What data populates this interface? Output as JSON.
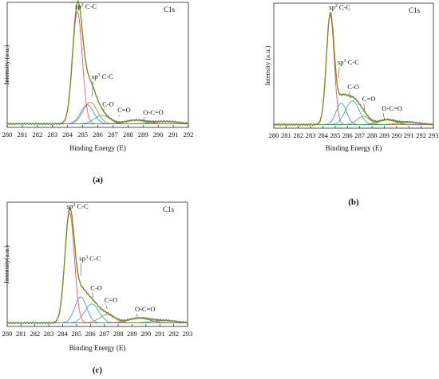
{
  "chart_data": [
    {
      "id": "a",
      "type": "line",
      "panel_label": "(a)",
      "title": "C1s",
      "xlabel": "Binding Energy (E)",
      "ylabel": "Intensity (a.u.)",
      "xlim": [
        280,
        292
      ],
      "ylim": [
        0,
        1.05
      ],
      "x_ticks": [
        280,
        281,
        282,
        283,
        284,
        285,
        286,
        287,
        288,
        289,
        290,
        291,
        292
      ],
      "y_ticks_shown": false,
      "grid": false,
      "baseline": 0.03,
      "annotations": [
        {
          "text": "sp",
          "sup": "2",
          "rest": " C-C",
          "at_x": 284.65,
          "at_y": 0.97,
          "tx": 284.5,
          "ty": 0.99
        },
        {
          "text": "sp",
          "sup": "3",
          "rest": " C-C",
          "at_x": 285.6,
          "at_y": 0.26,
          "tx": 285.6,
          "ty": 0.4
        },
        {
          "text": "C-O",
          "sup": "",
          "rest": "",
          "at_x": 286.4,
          "at_y": 0.14,
          "tx": 286.3,
          "ty": 0.17
        },
        {
          "text": "C=O",
          "sup": "",
          "rest": "",
          "at_x": 287.4,
          "at_y": 0.09,
          "tx": 287.3,
          "ty": 0.12
        },
        {
          "text": "O-C=O",
          "sup": "",
          "rest": "",
          "at_x": 289.0,
          "at_y": 0.06,
          "tx": 289.0,
          "ty": 0.1
        }
      ],
      "series": [
        {
          "name": "sp2 C-C",
          "color": "#e06060",
          "center": 284.65,
          "height": 0.94,
          "fwhm": 0.75
        },
        {
          "name": "sp3 C-C",
          "color": "#b08a4a",
          "center": 285.5,
          "height": 0.18,
          "fwhm": 1.1
        },
        {
          "name": "C-O",
          "color": "#4a90d9",
          "center": 285.3,
          "height": 0.16,
          "fwhm": 1.0
        },
        {
          "name": "C=O",
          "color": "#40b0a8",
          "center": 286.3,
          "height": 0.07,
          "fwhm": 1.2
        },
        {
          "name": "O-C=O",
          "color": "#8a5ac0",
          "center": 288.5,
          "height": 0.03,
          "fwhm": 1.6
        },
        {
          "name": "pi-pi*",
          "color": "#3aa05a",
          "center": 290.5,
          "height": 0.02,
          "fwhm": 2.0
        }
      ]
    },
    {
      "id": "b",
      "type": "line",
      "panel_label": "(b)",
      "title": "C1s",
      "xlabel": "Binding Energy (E)",
      "ylabel": "Intensity (a.u.)",
      "xlim": [
        280,
        293
      ],
      "ylim": [
        0,
        1.05
      ],
      "x_ticks": [
        280,
        281,
        282,
        283,
        284,
        285,
        286,
        287,
        288,
        289,
        290,
        291,
        292,
        293
      ],
      "y_ticks_shown": false,
      "grid": false,
      "baseline": 0.03,
      "annotations": [
        {
          "text": "sp",
          "sup": "2",
          "rest": " C-C",
          "at_x": 284.6,
          "at_y": 0.97,
          "tx": 284.5,
          "ty": 0.99
        },
        {
          "text": "sp",
          "sup": "3",
          "rest": " C-C",
          "at_x": 285.3,
          "at_y": 0.42,
          "tx": 285.2,
          "ty": 0.53
        },
        {
          "text": "C-O",
          "sup": "",
          "rest": "",
          "at_x": 286.3,
          "at_y": 0.25,
          "tx": 286.0,
          "ty": 0.32
        },
        {
          "text": "C=O",
          "sup": "",
          "rest": "",
          "at_x": 287.4,
          "at_y": 0.15,
          "tx": 287.2,
          "ty": 0.22
        },
        {
          "text": "O-C=O",
          "sup": "",
          "rest": "",
          "at_x": 289.0,
          "at_y": 0.07,
          "tx": 288.8,
          "ty": 0.14
        }
      ],
      "series": [
        {
          "name": "sp2 C-C",
          "color": "#e06060",
          "center": 284.6,
          "height": 0.92,
          "fwhm": 0.75
        },
        {
          "name": "sp3 C-C",
          "color": "#4a90d9",
          "center": 285.5,
          "height": 0.18,
          "fwhm": 1.0
        },
        {
          "name": "C-O",
          "color": "#40b0a8",
          "center": 286.4,
          "height": 0.2,
          "fwhm": 1.3
        },
        {
          "name": "C=O",
          "color": "#b08a4a",
          "center": 287.3,
          "height": 0.07,
          "fwhm": 1.2
        },
        {
          "name": "O-C=O",
          "color": "#8a5ac0",
          "center": 289.2,
          "height": 0.04,
          "fwhm": 1.6
        },
        {
          "name": "pi-pi*",
          "color": "#3aa05a",
          "center": 291.0,
          "height": 0.02,
          "fwhm": 2.0
        }
      ]
    },
    {
      "id": "c",
      "type": "line",
      "panel_label": "(c)",
      "title": "C1s",
      "xlabel": "Binding Energy (E)",
      "ylabel": "Intensity(a.u.)",
      "xlim": [
        280,
        293
      ],
      "ylim": [
        0,
        1.05
      ],
      "x_ticks": [
        280,
        281,
        282,
        283,
        284,
        285,
        286,
        287,
        288,
        289,
        290,
        291,
        292,
        293
      ],
      "y_ticks_shown": false,
      "grid": false,
      "baseline": 0.03,
      "annotations": [
        {
          "text": "sp",
          "sup": "2",
          "rest": " C-C",
          "at_x": 284.5,
          "at_y": 0.97,
          "tx": 284.3,
          "ty": 0.99
        },
        {
          "text": "sp",
          "sup": "3",
          "rest": " C-C",
          "at_x": 285.3,
          "at_y": 0.43,
          "tx": 285.2,
          "ty": 0.55
        },
        {
          "text": "C-O",
          "sup": "",
          "rest": "",
          "at_x": 286.2,
          "at_y": 0.24,
          "tx": 286.0,
          "ty": 0.3
        },
        {
          "text": "C=O",
          "sup": "",
          "rest": "",
          "at_x": 287.2,
          "at_y": 0.15,
          "tx": 287.0,
          "ty": 0.2
        },
        {
          "text": "O-C=O",
          "sup": "",
          "rest": "",
          "at_x": 289.4,
          "at_y": 0.07,
          "tx": 289.2,
          "ty": 0.12
        }
      ],
      "series": [
        {
          "name": "sp2 C-C",
          "color": "#e06060",
          "center": 284.5,
          "height": 0.93,
          "fwhm": 0.8
        },
        {
          "name": "sp3 C-C",
          "color": "#4a90d9",
          "center": 285.3,
          "height": 0.22,
          "fwhm": 1.0
        },
        {
          "name": "C-O",
          "color": "#40b0a8",
          "center": 286.1,
          "height": 0.16,
          "fwhm": 1.2
        },
        {
          "name": "C=O",
          "color": "#b08a4a",
          "center": 287.2,
          "height": 0.07,
          "fwhm": 1.3
        },
        {
          "name": "O-C=O",
          "color": "#8a5ac0",
          "center": 289.5,
          "height": 0.04,
          "fwhm": 1.8
        },
        {
          "name": "pi-pi*",
          "color": "#3aa05a",
          "center": 291.3,
          "height": 0.02,
          "fwhm": 2.0
        }
      ]
    }
  ],
  "envelope_color": "#8a8a1e",
  "raw_color": "#5a8a3a"
}
